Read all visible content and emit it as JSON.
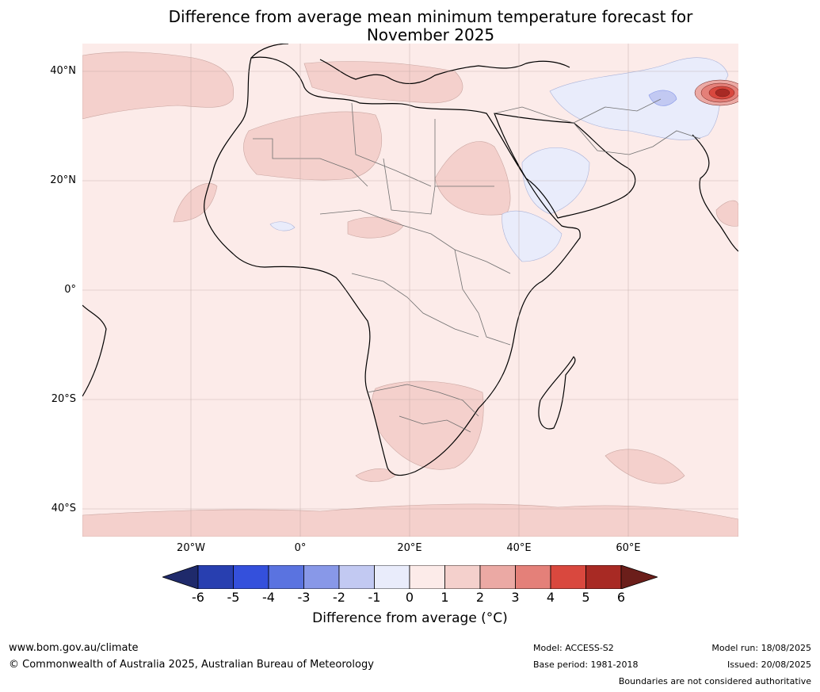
{
  "title_line1": "Difference from average mean minimum temperature forecast for",
  "title_line2": "November 2025",
  "lat_labels": [
    "40°N",
    "20°N",
    "0°",
    "20°S",
    "40°S"
  ],
  "lon_labels": [
    "20°W",
    "0°",
    "20°E",
    "40°E",
    "60°E"
  ],
  "colorbar": {
    "ticks": [
      "-6",
      "-5",
      "-4",
      "-3",
      "-2",
      "-1",
      "0",
      "1",
      "2",
      "3",
      "4",
      "5",
      "6"
    ],
    "colors": [
      "#1f2a6b",
      "#283fb0",
      "#3450dc",
      "#5a73e0",
      "#8898e8",
      "#c2c9f2",
      "#e9ecfb",
      "#fcebe9",
      "#f4d0cc",
      "#eba9a4",
      "#e48079",
      "#d9483e",
      "#a82a24",
      "#6b1e1a"
    ],
    "label": "Difference from average (°C)"
  },
  "footer": {
    "website": "www.bom.gov.au/climate",
    "copyright": "© Commonwealth of Australia 2025, Australian Bureau of Meteorology",
    "model": "Model: ACCESS-S2",
    "base_period": "Base period: 1981-2018",
    "model_run": "Model run: 18/08/2025",
    "issued": "Issued: 20/08/2025",
    "disclaimer": "Boundaries are not considered authoritative"
  }
}
